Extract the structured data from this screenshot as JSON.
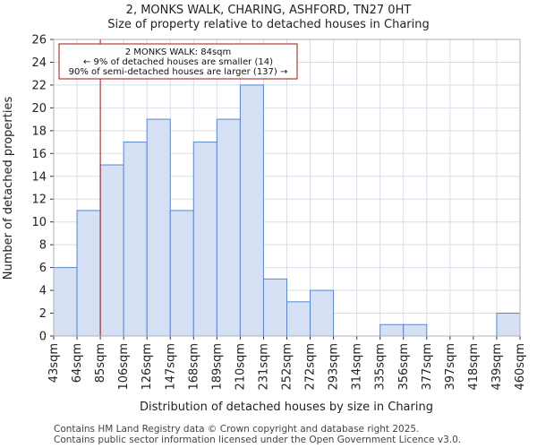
{
  "chart_data": {
    "type": "bar",
    "title": "2, MONKS WALK, CHARING, ASHFORD, TN27 0HT",
    "subtitle": "Size of property relative to detached houses in Charing",
    "xlabel": "Distribution of detached houses by size in Charing",
    "ylabel": "Number of detached properties",
    "tick_labels": [
      "43sqm",
      "64sqm",
      "85sqm",
      "106sqm",
      "126sqm",
      "147sqm",
      "168sqm",
      "189sqm",
      "210sqm",
      "231sqm",
      "252sqm",
      "272sqm",
      "293sqm",
      "314sqm",
      "335sqm",
      "356sqm",
      "377sqm",
      "397sqm",
      "418sqm",
      "439sqm",
      "460sqm"
    ],
    "values": [
      6,
      11,
      15,
      17,
      19,
      11,
      17,
      19,
      22,
      5,
      3,
      4,
      0,
      0,
      1,
      1,
      0,
      0,
      0,
      2
    ],
    "ylim": [
      0,
      26
    ],
    "yticks": [
      0,
      2,
      4,
      6,
      8,
      10,
      12,
      14,
      16,
      18,
      20,
      22,
      24,
      26
    ],
    "grid": true,
    "marker": {
      "value_sqm": 84,
      "bin_index": 2
    },
    "annotation": {
      "line1": "2 MONKS WALK: 84sqm",
      "line2": "← 9% of detached houses are smaller (14)",
      "line3": "90% of semi-detached houses are larger (137) →"
    },
    "colors": {
      "bar_fill": "#d5e0f4",
      "bar_edge": "#5b86c9",
      "marker": "#a31515",
      "grid": "#d8dde8"
    }
  },
  "footer": {
    "line1": "Contains HM Land Registry data © Crown copyright and database right 2025.",
    "line2": "Contains public sector information licensed under the Open Government Licence v3.0."
  }
}
